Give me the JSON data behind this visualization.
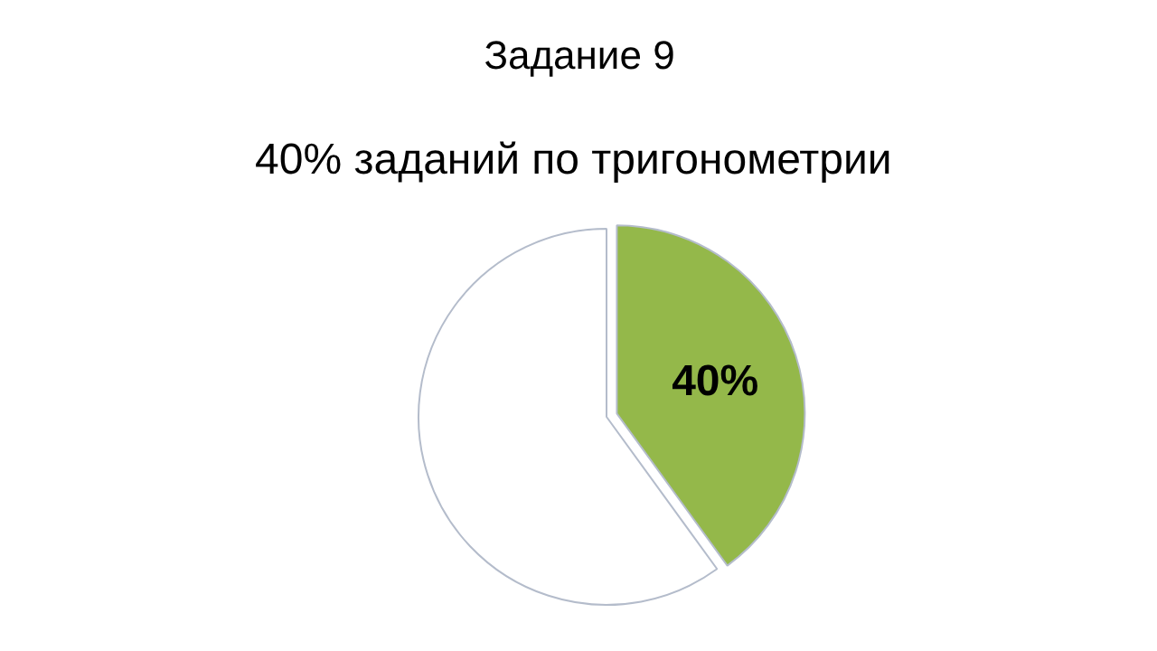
{
  "chart_data": {
    "type": "pie",
    "title": "Задание 9",
    "subtitle": "40%  заданий по тригонометрии",
    "categories": [
      null,
      null
    ],
    "values": [
      40,
      60
    ],
    "colors": [
      "#94b84a",
      "#ffffff"
    ],
    "value_labels": [
      "40%",
      null
    ]
  }
}
